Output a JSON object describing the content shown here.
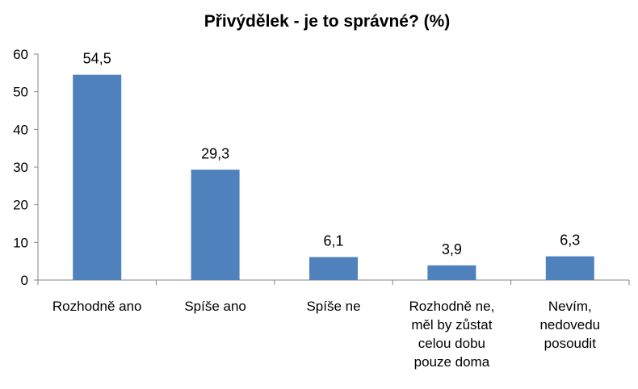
{
  "chart_data": {
    "type": "bar",
    "title": "Přivýdělek - je to správné? (%)",
    "categories": [
      [
        "Rozhodně ano"
      ],
      [
        "Spíše ano"
      ],
      [
        "Spíše ne"
      ],
      [
        "Rozhodně ne,",
        "měl by zůstat",
        "celou dobu",
        "pouze doma"
      ],
      [
        "Nevím,",
        "nedovedu",
        "posoudit"
      ]
    ],
    "values": [
      54.5,
      29.3,
      6.1,
      3.9,
      6.3
    ],
    "value_labels": [
      "54,5",
      "29,3",
      "6,1",
      "3,9",
      "6,3"
    ],
    "ylim": [
      0,
      60
    ],
    "yticks": [
      0,
      10,
      20,
      30,
      40,
      50,
      60
    ],
    "bar_color": "#4f81bd",
    "gridlines": false,
    "legend": "none"
  }
}
